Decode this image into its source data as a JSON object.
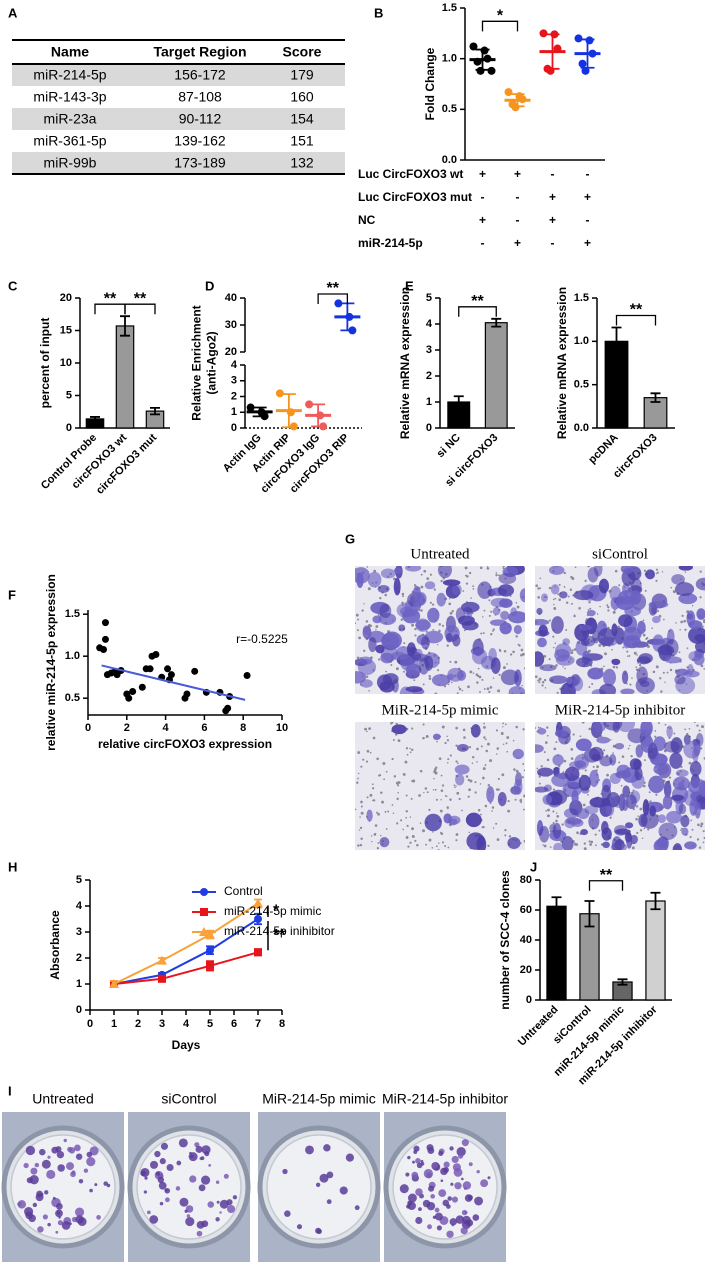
{
  "panel_labels": [
    "A",
    "B",
    "C",
    "D",
    "E",
    "F",
    "G",
    "H",
    "I",
    "J"
  ],
  "table": {
    "header": [
      "Name",
      "Target Region",
      "Score"
    ],
    "rows": [
      [
        "miR-214-5p",
        "156-172",
        179
      ],
      [
        "miR-143-3p",
        "87-108",
        160
      ],
      [
        "miR-23a",
        "90-112",
        154
      ],
      [
        "miR-361-5p",
        "139-162",
        151
      ],
      [
        "miR-99b",
        "173-189",
        132
      ]
    ]
  },
  "transwell_images": [
    "Untreated",
    "siControl",
    "MiR-214-5p mimic",
    "MiR-214-5p inhibitor"
  ],
  "colony_images": [
    "Untreated",
    "siControl",
    "MiR-214-5p mimic",
    "MiR-214-5p inhibitor"
  ],
  "chart_data": [
    {
      "type": "dot",
      "ylabel": "Fold Change",
      "ylim": [
        0,
        1.5
      ],
      "yticks": [
        {
          "value": 0,
          "label": "0.0"
        },
        0.5,
        {
          "value": 1,
          "label": "1.0"
        },
        1.5
      ],
      "groups": [
        {
          "color": "#000000",
          "values": [
            1.12,
            1.08,
            1.0,
            0.97,
            0.88,
            0.88
          ],
          "mean": 0.99,
          "sd": 0.1
        },
        {
          "color": "#f7941d",
          "values": [
            0.67,
            0.63,
            0.6,
            0.55,
            0.52
          ],
          "mean": 0.59,
          "sd": 0.06
        },
        {
          "color": "#e8141c",
          "values": [
            1.25,
            1.24,
            1.1,
            0.9,
            0.88
          ],
          "mean": 1.07,
          "sd": 0.17
        },
        {
          "color": "#1432e0",
          "values": [
            1.2,
            1.18,
            1.05,
            0.95,
            0.88
          ],
          "mean": 1.05,
          "sd": 0.14
        }
      ],
      "conditions": [
        {
          "label": "Luc CircFOXO3 wt",
          "signs": [
            "+",
            "+",
            "-",
            "-"
          ]
        },
        {
          "label": "Luc CircFOXO3 mut",
          "signs": [
            "-",
            "-",
            "+",
            "+"
          ]
        },
        {
          "label": "NC",
          "signs": [
            "+",
            "-",
            "+",
            "-"
          ]
        },
        {
          "label": "miR-214-5p",
          "signs": [
            "-",
            "+",
            "-",
            "+"
          ]
        }
      ],
      "significance": [
        {
          "label": "*",
          "groups": [
            0,
            1
          ]
        }
      ]
    },
    {
      "type": "bar",
      "ylabel": "percent of input",
      "categories": [
        "Control Probe",
        "circFOXO3 wt",
        "circFOXO3 mut"
      ],
      "values": [
        1.4,
        15.7,
        2.6
      ],
      "errors": [
        0.3,
        1.5,
        0.5
      ],
      "colors": [
        "#000000",
        "#999999",
        "#999999"
      ],
      "ylim": [
        0,
        20
      ],
      "yticks": [
        0,
        5,
        10,
        15,
        20
      ],
      "significance": [
        {
          "label": "**",
          "groups": [
            0,
            1
          ]
        },
        {
          "label": "**",
          "groups": [
            1,
            2
          ]
        }
      ]
    },
    {
      "type": "dot",
      "ylabel": [
        "Relative Enrichment",
        "(anti-Ago2)"
      ],
      "categories": [
        "Actin IgG",
        "Actin RIP",
        "circFOXO3 IgG",
        "circFOXO3 RIP"
      ],
      "groups": [
        {
          "color": "#000000",
          "values": [
            1.3,
            1.0,
            0.75
          ],
          "mean": 1.02,
          "sd": 0.28
        },
        {
          "color": "#f7941d",
          "values": [
            2.2,
            1.0,
            0.1
          ],
          "mean": 1.1,
          "sd": 1.05
        },
        {
          "color": "#f05a5a",
          "values": [
            1.5,
            0.8,
            0.1
          ],
          "mean": 0.8,
          "sd": 0.7
        },
        {
          "color": "#1432e0",
          "values": [
            38,
            33,
            28
          ],
          "mean": 33,
          "sd": 5
        }
      ],
      "ylim": [
        0,
        4
      ],
      "yticks": [
        0,
        1,
        2,
        3,
        4
      ],
      "ylim_upper": [
        20,
        40
      ],
      "yticks_upper": [
        20,
        30,
        40
      ],
      "significance": [
        {
          "label": "**",
          "groups": [
            2,
            3
          ]
        }
      ]
    },
    {
      "type": "bar",
      "ylabel": "Relative mRNA expression",
      "categories": [
        "si NC",
        "si circFOXO3"
      ],
      "values": [
        1.0,
        4.05
      ],
      "errors": [
        0.22,
        0.15
      ],
      "colors": [
        "#000000",
        "#999999"
      ],
      "ylim": [
        0,
        5
      ],
      "yticks": [
        0,
        1,
        2,
        3,
        4,
        5
      ],
      "significance": [
        {
          "label": "**",
          "groups": [
            0,
            1
          ]
        }
      ]
    },
    {
      "type": "bar",
      "ylabel": "Relative mRNA expression",
      "categories": [
        "pcDNA",
        "circFOXO3"
      ],
      "values": [
        1.0,
        0.35
      ],
      "errors": [
        0.16,
        0.05
      ],
      "colors": [
        "#000000",
        "#999999"
      ],
      "ylim": [
        0,
        1.5
      ],
      "yticks": [
        {
          "value": 0,
          "label": "0.0"
        },
        0.5,
        {
          "value": 1,
          "label": "1.0"
        },
        1.5
      ],
      "significance": [
        {
          "label": "**",
          "groups": [
            0,
            1
          ]
        }
      ]
    },
    {
      "type": "scatter",
      "xlabel": "relative circFOXO3 expression",
      "ylabel": "relative miR-214-5p expression",
      "annotation": "r=-0.5225",
      "color": "#000000",
      "x": [
        0.6,
        0.8,
        0.9,
        0.9,
        1.0,
        1.2,
        1.4,
        1.5,
        1.7,
        2.0,
        2.1,
        2.3,
        2.8,
        3.0,
        3.2,
        3.3,
        3.5,
        3.8,
        4.1,
        4.2,
        4.3,
        5.0,
        5.1,
        5.5,
        6.1,
        6.8,
        7.1,
        7.2,
        7.3,
        8.2
      ],
      "y": [
        1.1,
        1.08,
        1.2,
        1.4,
        0.78,
        0.8,
        0.82,
        0.78,
        0.83,
        0.55,
        0.5,
        0.58,
        0.63,
        0.85,
        0.85,
        1.0,
        1.02,
        0.75,
        0.85,
        0.72,
        0.78,
        0.5,
        0.55,
        0.82,
        0.57,
        0.57,
        0.35,
        0.38,
        0.52,
        0.77
      ],
      "fit": {
        "color": "#4a5bd8",
        "x": [
          0.7,
          8.1
        ],
        "y": [
          0.89,
          0.48
        ]
      },
      "xlim": [
        0,
        10
      ],
      "xticks": [
        0,
        2,
        4,
        6,
        8,
        10
      ],
      "ylim": [
        0.3,
        1.55
      ],
      "yticks": [
        0.5,
        {
          "value": 1,
          "label": "1.0"
        },
        1.5
      ]
    },
    {
      "type": "line",
      "xlabel": "Days",
      "ylabel": "Absorbance",
      "x": [
        1,
        3,
        5,
        7
      ],
      "series": [
        {
          "name": "Control",
          "color": "#1f3de0",
          "values": [
            1.0,
            1.35,
            2.3,
            3.5
          ],
          "errors": [
            0.12,
            0.07,
            0.15,
            0.2
          ]
        },
        {
          "name": "miR-214-5p mimic",
          "color": "#e8141c",
          "values": [
            1.0,
            1.2,
            1.7,
            2.22
          ],
          "errors": [
            0.12,
            0.07,
            0.18,
            0.12
          ]
        },
        {
          "name": "miR-214-5p inihibitor",
          "color": "#f9a23b",
          "values": [
            1.0,
            1.9,
            2.9,
            4.1
          ],
          "errors": [
            0.12,
            0.1,
            0.15,
            0.15
          ]
        }
      ],
      "xlim": [
        0,
        8
      ],
      "xticks": [
        0,
        1,
        2,
        3,
        4,
        5,
        6,
        7,
        8
      ],
      "ylim": [
        0,
        5
      ],
      "yticks": [
        0,
        1,
        2,
        3,
        4,
        5
      ],
      "legend": "upper right",
      "annotations": [
        {
          "label": "*",
          "series": [
            2,
            0
          ]
        },
        {
          "label": "**",
          "series": [
            0,
            1
          ]
        }
      ]
    },
    {
      "type": "bar",
      "ylabel": "number of SCC-4 clones",
      "categories": [
        "Untreated",
        "siControl",
        "miR-214-5p mimic",
        "miR-214-5p inhibitor"
      ],
      "values": [
        62.5,
        57.5,
        12,
        66
      ],
      "errors": [
        6,
        8.5,
        1.8,
        5.5
      ],
      "colors": [
        "#000000",
        "#999999",
        "#666666",
        "#d0d0d0"
      ],
      "ylim": [
        0,
        80
      ],
      "yticks": [
        0,
        20,
        40,
        60,
        80
      ],
      "significance": [
        {
          "label": "**",
          "groups": [
            1,
            2
          ]
        }
      ]
    }
  ]
}
